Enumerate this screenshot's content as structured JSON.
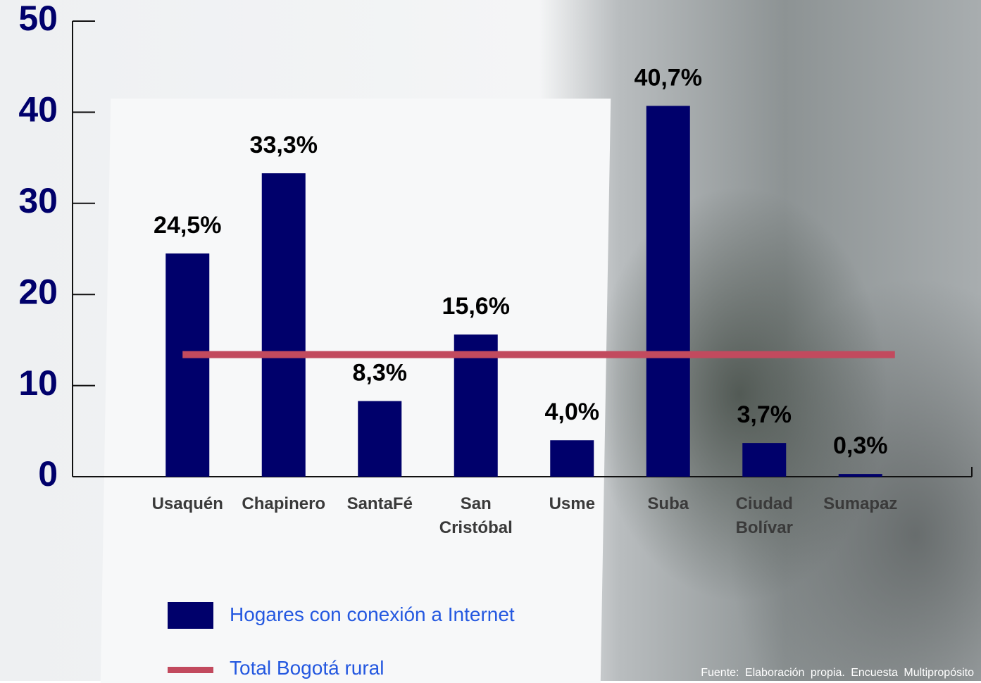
{
  "chart_data": {
    "type": "bar",
    "categories": [
      "Usaquén",
      "Chapinero",
      "SantaFé",
      "San Cristóbal",
      "Usme",
      "Suba",
      "Ciudad Bolívar",
      "Sumapaz"
    ],
    "series": [
      {
        "name": "Hogares con conexión a Internet",
        "color": "#00006b",
        "values": [
          24.5,
          33.3,
          8.3,
          15.6,
          4.0,
          40.7,
          3.7,
          0.3
        ],
        "value_labels": [
          "24,5%",
          "33,3%",
          "8,3%",
          "15,6%",
          "4,0%",
          "40,7%",
          "3,7%",
          "0,3%"
        ]
      }
    ],
    "reference_line": {
      "name": "Total Bogotá rural",
      "value": 13.4,
      "color": "#c24a5e"
    },
    "ylim": [
      0,
      50
    ],
    "yticks": [
      0,
      10,
      20,
      30,
      40,
      50
    ],
    "source": "Fuente: Elaboración propia. Encuesta Multipropósito"
  }
}
